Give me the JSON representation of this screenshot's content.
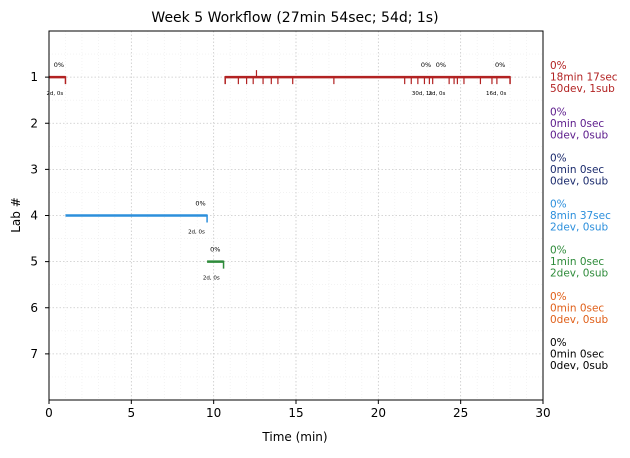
{
  "chart_data": {
    "type": "timeline",
    "title": "Week 5 Workflow (27min 54sec; 54d; 1s)",
    "xlabel": "Time (min)",
    "ylabel": "Lab #",
    "xlim": [
      0,
      30
    ],
    "ylim": [
      8,
      0
    ],
    "xticks": [
      "0",
      "5",
      "10",
      "15",
      "20",
      "25",
      "30"
    ],
    "yticks": [
      "1",
      "2",
      "3",
      "4",
      "5",
      "6",
      "7"
    ],
    "grid": "dotted",
    "lanes": [
      {
        "lab": 1,
        "color": "#b22222",
        "side": [
          "0%",
          "18min 17sec",
          "50dev, 1sub"
        ],
        "segments": [
          [
            0,
            1.0
          ],
          [
            10.7,
            28.0
          ]
        ],
        "end_ticks": [
          1.0,
          10.7,
          28.0
        ],
        "ticks_down": [
          11.5,
          12.0,
          12.4,
          13.0,
          13.5,
          13.9,
          14.8,
          17.3,
          21.6,
          22.0,
          22.4,
          22.8,
          23.1,
          23.3,
          24.3,
          24.6,
          24.8,
          25.2,
          26.2,
          26.9,
          27.2
        ],
        "ticks_up": [
          12.6
        ],
        "annotations": [
          {
            "x": 0.6,
            "above": "0%",
            "below": "2d, 0s"
          },
          {
            "x": 22.9,
            "above": "0%",
            "below": "30d, 1s"
          },
          {
            "x": 23.8,
            "above": "0%",
            "below": "2d, 0s"
          },
          {
            "x": 27.4,
            "above": "0%",
            "below": "16d, 0s"
          }
        ]
      },
      {
        "lab": 2,
        "color": "#5b1a8b",
        "side": [
          "0%",
          "0min 0sec",
          "0dev, 0sub"
        ],
        "segments": [],
        "end_ticks": [],
        "ticks_down": [],
        "ticks_up": [],
        "annotations": []
      },
      {
        "lab": 3,
        "color": "#1a2a6c",
        "side": [
          "0%",
          "0min 0sec",
          "0dev, 0sub"
        ],
        "segments": [],
        "end_ticks": [],
        "ticks_down": [],
        "ticks_up": [],
        "annotations": []
      },
      {
        "lab": 4,
        "color": "#2c8fdc",
        "side": [
          "0%",
          "8min 37sec",
          "2dev, 0sub"
        ],
        "segments": [
          [
            1.0,
            9.6
          ]
        ],
        "end_ticks": [
          9.6
        ],
        "ticks_down": [],
        "ticks_up": [],
        "annotations": [
          {
            "x": 9.2,
            "above": "0%",
            "below": "2d, 0s"
          }
        ]
      },
      {
        "lab": 5,
        "color": "#2e8b3a",
        "side": [
          "0%",
          "1min 0sec",
          "2dev, 0sub"
        ],
        "segments": [
          [
            9.6,
            10.6
          ]
        ],
        "end_ticks": [
          10.6
        ],
        "ticks_down": [],
        "ticks_up": [],
        "annotations": [
          {
            "x": 10.1,
            "above": "0%",
            "below": "2d, 0s"
          }
        ]
      },
      {
        "lab": 6,
        "color": "#e0601a",
        "side": [
          "0%",
          "0min 0sec",
          "0dev, 0sub"
        ],
        "segments": [],
        "end_ticks": [],
        "ticks_down": [],
        "ticks_up": [],
        "annotations": []
      },
      {
        "lab": 7,
        "color": "#000000",
        "side": [
          "0%",
          "0min 0sec",
          "0dev, 0sub"
        ],
        "segments": [],
        "end_ticks": [],
        "ticks_down": [],
        "ticks_up": [],
        "annotations": []
      }
    ]
  }
}
